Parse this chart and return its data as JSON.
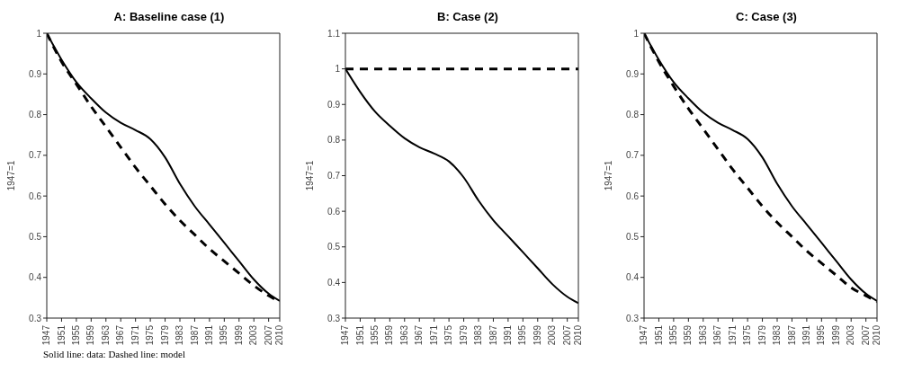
{
  "chart_data": [
    {
      "type": "line",
      "title": "A: Baseline case (1)",
      "ylabel": "1947=1",
      "x": [
        1947,
        1951,
        1955,
        1959,
        1963,
        1967,
        1971,
        1975,
        1979,
        1983,
        1987,
        1991,
        1995,
        1999,
        2003,
        2007,
        2010
      ],
      "xlim": [
        1947,
        2010
      ],
      "xticks": [
        1947,
        1951,
        1955,
        1959,
        1963,
        1967,
        1971,
        1975,
        1979,
        1983,
        1987,
        1991,
        1995,
        1999,
        2003,
        2007,
        2010
      ],
      "ylim": [
        0.3,
        1
      ],
      "yticks": [
        0.3,
        0.4,
        0.5,
        0.6,
        0.7,
        0.8,
        0.9,
        1
      ],
      "series": [
        {
          "color": "#000000",
          "line_style": "solid",
          "values": [
            1,
            0.935,
            0.88,
            0.84,
            0.805,
            0.78,
            0.762,
            0.74,
            0.695,
            0.63,
            0.575,
            0.53,
            0.485,
            0.44,
            0.395,
            0.36,
            0.342
          ]
        },
        {
          "color": "#000000",
          "line_style": "dashed",
          "values": [
            1,
            0.93,
            0.875,
            0.82,
            0.77,
            0.72,
            0.67,
            0.625,
            0.58,
            0.54,
            0.505,
            0.47,
            0.44,
            0.41,
            0.38,
            0.355,
            0.34
          ]
        }
      ],
      "annotations": [
        "Solid line: data: Dashed line: model"
      ]
    },
    {
      "type": "line",
      "title": "B: Case (2)",
      "ylabel": "1947=1",
      "x": [
        1947,
        1951,
        1955,
        1959,
        1963,
        1967,
        1971,
        1975,
        1979,
        1983,
        1987,
        1991,
        1995,
        1999,
        2003,
        2007,
        2010
      ],
      "xlim": [
        1947,
        2010
      ],
      "xticks": [
        1947,
        1951,
        1955,
        1959,
        1963,
        1967,
        1971,
        1975,
        1979,
        1983,
        1987,
        1991,
        1995,
        1999,
        2003,
        2007,
        2010
      ],
      "ylim": [
        0.3,
        1.1
      ],
      "yticks": [
        0.3,
        0.4,
        0.5,
        0.6,
        0.7,
        0.8,
        0.9,
        1,
        1.1
      ],
      "series": [
        {
          "color": "#000000",
          "line_style": "solid",
          "values": [
            1,
            0.935,
            0.88,
            0.84,
            0.805,
            0.78,
            0.762,
            0.74,
            0.695,
            0.63,
            0.575,
            0.53,
            0.485,
            0.44,
            0.395,
            0.36,
            0.342
          ]
        },
        {
          "color": "#000000",
          "line_style": "dashed",
          "values": [
            1,
            1,
            1,
            1,
            1,
            1,
            1,
            1,
            1,
            1,
            1,
            1,
            1,
            1,
            1,
            1,
            1
          ]
        }
      ]
    },
    {
      "type": "line",
      "title": "C: Case (3)",
      "ylabel": "1947=1",
      "x": [
        1947,
        1951,
        1955,
        1959,
        1963,
        1967,
        1971,
        1975,
        1979,
        1983,
        1987,
        1991,
        1995,
        1999,
        2003,
        2007,
        2010
      ],
      "xlim": [
        1947,
        2010
      ],
      "xticks": [
        1947,
        1951,
        1955,
        1959,
        1963,
        1967,
        1971,
        1975,
        1979,
        1983,
        1987,
        1991,
        1995,
        1999,
        2003,
        2007,
        2010
      ],
      "ylim": [
        0.3,
        1
      ],
      "yticks": [
        0.3,
        0.4,
        0.5,
        0.6,
        0.7,
        0.8,
        0.9,
        1
      ],
      "series": [
        {
          "color": "#000000",
          "line_style": "solid",
          "values": [
            1,
            0.935,
            0.88,
            0.84,
            0.805,
            0.78,
            0.762,
            0.74,
            0.695,
            0.63,
            0.575,
            0.53,
            0.485,
            0.44,
            0.395,
            0.36,
            0.342
          ]
        },
        {
          "color": "#000000",
          "line_style": "dashed",
          "values": [
            1,
            0.93,
            0.87,
            0.815,
            0.765,
            0.715,
            0.665,
            0.62,
            0.575,
            0.535,
            0.5,
            0.465,
            0.435,
            0.405,
            0.375,
            0.355,
            0.34
          ]
        }
      ]
    }
  ]
}
